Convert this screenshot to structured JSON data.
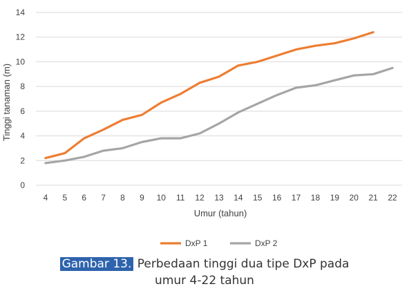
{
  "chart_data": {
    "type": "line",
    "x": [
      4,
      5,
      6,
      7,
      8,
      9,
      10,
      11,
      12,
      13,
      14,
      15,
      16,
      17,
      18,
      19,
      20,
      21,
      22
    ],
    "xlabel": "Umur  (tahun)",
    "ylabel": "Tinggi tanaman (m)",
    "ylim": [
      0,
      14
    ],
    "yticks": [
      0,
      2,
      4,
      6,
      8,
      10,
      12,
      14
    ],
    "grid": "horizontal",
    "legend_position": "bottom",
    "series": [
      {
        "name": "DxP 1",
        "color": "#ED7D31",
        "values": [
          2.2,
          2.6,
          3.8,
          4.5,
          5.3,
          5.7,
          6.7,
          7.4,
          8.3,
          8.8,
          9.7,
          10.0,
          10.5,
          11.0,
          11.3,
          11.5,
          11.9,
          12.4,
          null
        ]
      },
      {
        "name": "DxP 2",
        "color": "#A5A5A5",
        "values": [
          1.8,
          2.0,
          2.3,
          2.8,
          3.0,
          3.5,
          3.8,
          3.8,
          4.2,
          5.0,
          5.9,
          6.6,
          7.3,
          7.9,
          8.1,
          8.5,
          8.9,
          9.0,
          9.5
        ]
      }
    ]
  },
  "caption": {
    "label": "Gambar 13.",
    "text": " Perbedaan tinggi dua tipe DxP pada",
    "line2": "umur 4-22 tahun"
  }
}
